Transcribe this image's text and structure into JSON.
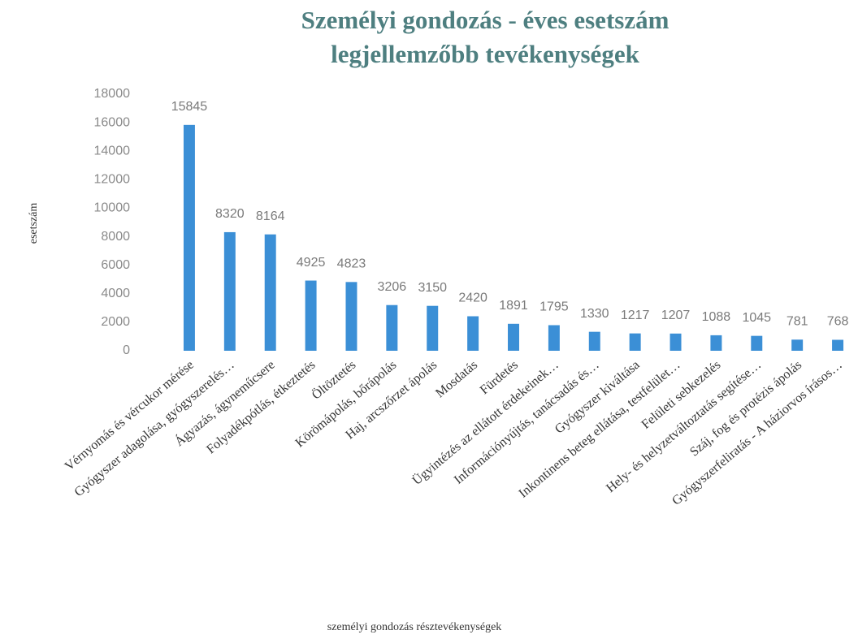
{
  "chart_data": {
    "type": "bar",
    "title": "Személyi gondozás - éves esetszám",
    "subtitle": "legjellemzőbb tevékenységek",
    "x_label": "személyi gondozás résztevékenységek",
    "y_label": "esetszám",
    "categories": [
      "Vérnyomás és vércukor mérése",
      "Gyógyszer adagolása, gyógyszerelés…",
      "Ágyazás, ágyneműcsere",
      "Folyadékpótlás, étkeztetés",
      "Öltöztetés",
      "Körömápolás, bőrápolás",
      "Haj, arcszőrzet ápolás",
      "Mosdatás",
      "Fürdetés",
      "Ügyintézés az ellátott érdekeinek…",
      "Információnyújtás, tanácsadás és…",
      "Gyógyszer kiváltása",
      "Inkontinens beteg ellátása, testfelület…",
      "Felületi sebkezelés",
      "Hely- és helyzetváltoztatás segítése…",
      "Száj, fog és protézis ápolás",
      "Gyógyszerfeliratás - A háziorvos írásos…"
    ],
    "values": [
      15845,
      8320,
      8164,
      4925,
      4823,
      3206,
      3150,
      2420,
      1891,
      1795,
      1330,
      1217,
      1207,
      1088,
      1045,
      781,
      768
    ],
    "color": "#3b8fd6",
    "ylim": [
      0,
      18000
    ],
    "yticks": [
      0,
      2000,
      4000,
      6000,
      8000,
      10000,
      12000,
      14000,
      16000,
      18000
    ],
    "grid": false
  }
}
